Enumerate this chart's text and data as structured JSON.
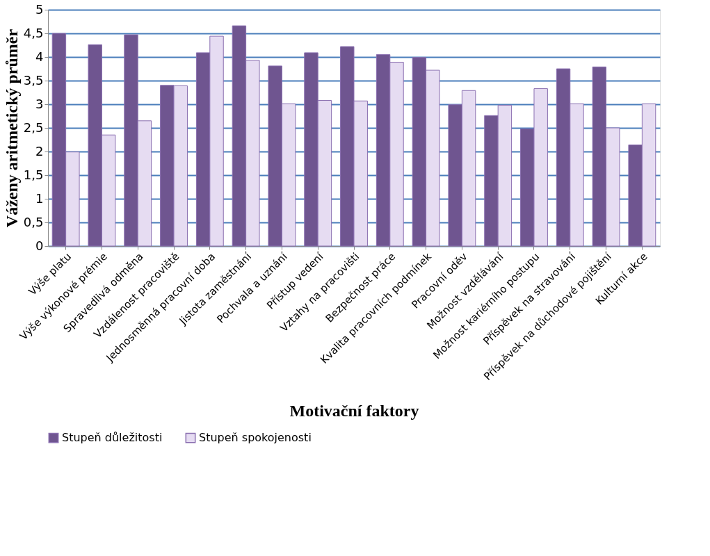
{
  "chart_data": {
    "type": "bar",
    "xlabel": "Motivační faktory",
    "ylabel": "Váženy aritmetický průměr",
    "categories": [
      "Výše platu",
      "Výše výkonové prémie",
      "Spravedlivá odměna",
      "Vzdálenost pracoviště",
      "Jednosměnná pracovní doba",
      "Jistota zaměstnání",
      "Pochvala a uznání",
      "Přístup vedení",
      "Vztahy na pracovišti",
      "Bezpečnost práce",
      "Kvalita pracovních podmínek",
      "Pracovní oděv",
      "Možnost vzdělávání",
      "Možnost kariérního postupu",
      "Příspěvek na stravování",
      "Příspěvek na důchodové pojištění",
      "Kulturní akce"
    ],
    "series": [
      {
        "name": "Stupeň důležitosti",
        "color": "#6f5590",
        "values": [
          4.5,
          4.26,
          4.47,
          3.4,
          4.09,
          4.66,
          3.81,
          4.09,
          4.22,
          4.05,
          3.99,
          2.99,
          2.76,
          2.48,
          3.75,
          3.79,
          2.14
        ]
      },
      {
        "name": "Stupeň spokojenosti",
        "color": "#e6dcf2",
        "values": [
          1.99,
          2.35,
          2.65,
          3.39,
          4.44,
          3.93,
          3.01,
          3.08,
          3.07,
          3.89,
          3.72,
          3.29,
          2.98,
          3.33,
          3.01,
          2.5,
          3.01
        ]
      }
    ],
    "ylim": [
      0,
      5
    ],
    "yticks": [
      0,
      {
        "value": 0.5,
        "label": "0,5"
      },
      1,
      {
        "value": 1.5,
        "label": "1,5"
      },
      2,
      {
        "value": 2.5,
        "label": "2,5"
      },
      3,
      {
        "value": 3.5,
        "label": "3,5"
      },
      4,
      {
        "value": 4.5,
        "label": "4,5"
      },
      5
    ],
    "grid": "y",
    "legend": "bottom"
  }
}
